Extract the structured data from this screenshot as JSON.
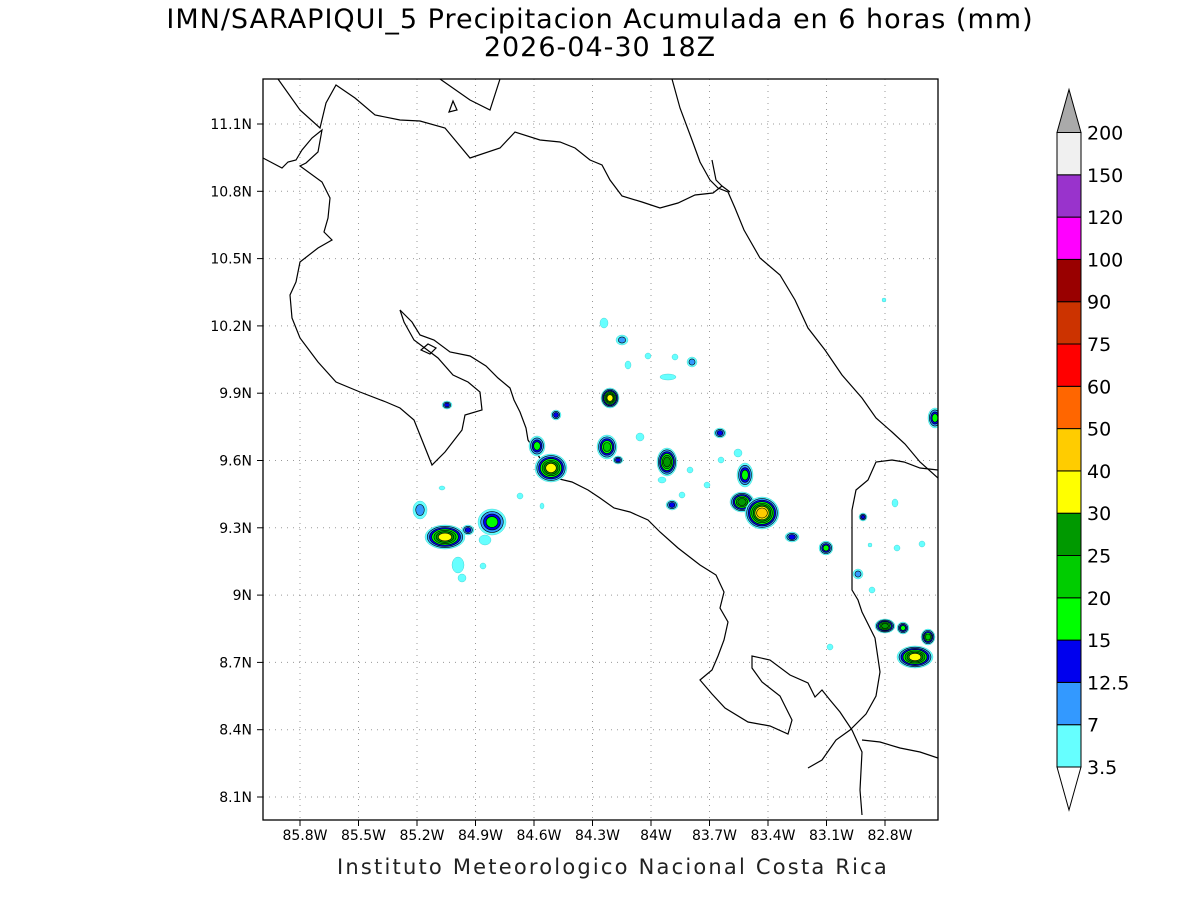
{
  "header": {
    "title": "IMN/SARAPIQUI_5 Precipitacion Acumulada en 6 horas (mm)",
    "valid_time": "2026-04-30 18Z"
  },
  "map": {
    "lat_labels": [
      "11.1N",
      "10.8N",
      "10.5N",
      "10.2N",
      "9.9N",
      "9.6N",
      "9.3N",
      "9N",
      "8.7N",
      "8.4N",
      "8.1N"
    ],
    "lon_labels": [
      "85.8W",
      "85.5W",
      "85.2W",
      "84.9W",
      "84.6W",
      "84.3W",
      "84W",
      "83.7W",
      "83.4W",
      "83.1W",
      "82.8W"
    ],
    "grid": true
  },
  "legend": {
    "levels": [
      "3.5",
      "7",
      "12.5",
      "15",
      "20",
      "25",
      "30",
      "40",
      "50",
      "60",
      "75",
      "90",
      "100",
      "120",
      "150",
      "200"
    ],
    "colors": [
      "#66ffff",
      "#3399ff",
      "#0000ee",
      "#00ff00",
      "#00cc00",
      "#009900",
      "#ffff00",
      "#ffcc00",
      "#ff6600",
      "#ff0000",
      "#cc3300",
      "#990000",
      "#ff00ff",
      "#9933cc",
      "#f0f0f0"
    ],
    "overflow_color": "#aaaaaa"
  },
  "footer": {
    "credit": "Instituto Meteorologico Nacional Costa Rica"
  }
}
